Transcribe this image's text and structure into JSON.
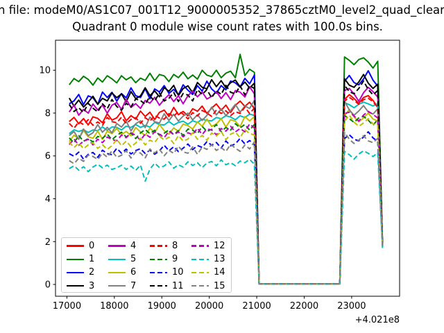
{
  "figure": {
    "title_line1": "n file: modeM0/AS1C07_001T12_9000005352_37865cztM0_level2_quad_clean",
    "title_line2": "Quadrant 0 module wise count rates with 100.0s bins."
  },
  "chart_data": {
    "type": "line",
    "title": "Quadrant 0 module wise count rates with 100.0s bins.",
    "file_label_visible": "n file: modeM0/AS1C07_001T12_9000005352_37865cztM0_level2_quad_clean",
    "xlabel": "",
    "ylabel": "",
    "x_axis_offset_text": "+4.021e8",
    "xticks": [
      17000,
      18000,
      19000,
      20000,
      21000,
      22000,
      23000
    ],
    "yticks": [
      0,
      2,
      4,
      6,
      8,
      10
    ],
    "xlim": [
      16760,
      24010
    ],
    "ylim": [
      -0.55,
      11.4
    ],
    "grid": false,
    "legend_position": "lower left",
    "legend_columns": 4,
    "bin_seconds": 100.0,
    "x_start": 17050,
    "x_step": 100,
    "zero_from": 21050,
    "zero_to": 22750,
    "zero_value": 0.02,
    "bump_from": 22850,
    "final_x": 23650,
    "noise_templates": {
      "A": [
        0.0,
        0.4,
        -0.3,
        0.2,
        -0.5,
        0.3,
        0.1,
        -0.4,
        0.5,
        -0.2,
        0.0,
        0.6,
        -0.4,
        0.1,
        -0.3,
        0.5,
        -0.1,
        0.3,
        -0.5,
        0.2,
        0.4,
        -0.3,
        0.6,
        -0.2,
        0.1,
        -0.4,
        0.3,
        0.0,
        0.5,
        -0.3,
        0.2,
        0.6,
        -0.1,
        0.4,
        -0.4,
        0.3,
        0.7,
        0.1,
        0.5,
        -0.2
      ],
      "B": [
        -0.2,
        0.5,
        0.1,
        0.7,
        0.3,
        -0.4,
        0.4,
        -0.1,
        0.6,
        0.2,
        -0.3,
        0.5,
        0.0,
        0.3,
        -0.4,
        0.1,
        -0.2,
        0.6,
        -0.3,
        0.4,
        0.2,
        -0.5,
        0.3,
        -0.1,
        0.5,
        -0.3,
        0.1,
        -0.4,
        0.6,
        0.0,
        -0.2,
        0.5,
        -0.4,
        0.1,
        0.3,
        -0.5,
        0.2,
        -0.3,
        0.4,
        0.0
      ]
    },
    "bump_template": [
      0.3,
      0.8,
      0.4,
      -0.1,
      0.5,
      0.7,
      0.2,
      -0.5
    ],
    "series": [
      {
        "label": "0",
        "color": "#ff0000",
        "dashed": false,
        "start": 7.6,
        "end": 8.3,
        "amp": 0.45,
        "tpl": "A",
        "sign": 1,
        "shift": 0,
        "bump": 8.5,
        "final": 1.8
      },
      {
        "label": "1",
        "color": "#008000",
        "dashed": false,
        "start": 9.4,
        "end": 9.9,
        "amp": 0.4,
        "tpl": "B",
        "sign": 1,
        "shift": 0,
        "bump": 10.3,
        "final": 1.9,
        "spikes": [
          [
            36,
            0.8
          ]
        ]
      },
      {
        "label": "2",
        "color": "#0000ff",
        "dashed": false,
        "start": 8.6,
        "end": 9.5,
        "amp": 0.55,
        "tpl": "A",
        "sign": -1,
        "shift": 5,
        "bump": 9.7,
        "final": 1.85
      },
      {
        "label": "3",
        "color": "#000000",
        "dashed": false,
        "start": 8.5,
        "end": 9.55,
        "amp": 0.5,
        "tpl": "B",
        "sign": -1,
        "shift": 5,
        "bump": 9.55,
        "final": 1.9
      },
      {
        "label": "4",
        "color": "#bf00bf",
        "dashed": false,
        "start": 8.05,
        "end": 9.0,
        "amp": 0.5,
        "tpl": "A",
        "sign": 1,
        "shift": 10,
        "bump": 8.8,
        "final": 1.8
      },
      {
        "label": "5",
        "color": "#00bfbf",
        "dashed": false,
        "start": 7.1,
        "end": 7.85,
        "amp": 0.2,
        "tpl": "B",
        "sign": 1,
        "shift": 10,
        "bump": 8.35,
        "final": 1.8
      },
      {
        "label": "6",
        "color": "#bfbf00",
        "dashed": false,
        "start": 6.9,
        "end": 7.7,
        "amp": 0.45,
        "tpl": "A",
        "sign": -1,
        "shift": 15,
        "bump": 7.95,
        "final": 1.75
      },
      {
        "label": "7",
        "color": "#808080",
        "dashed": false,
        "start": 7.0,
        "end": 8.4,
        "amp": 0.5,
        "tpl": "B",
        "sign": -1,
        "shift": 15,
        "bump": 8.3,
        "final": 1.8
      },
      {
        "label": "8",
        "color": "#ff0000",
        "dashed": true,
        "start": 7.45,
        "end": 8.1,
        "amp": 0.35,
        "tpl": "B",
        "sign": 1,
        "shift": 20,
        "bump": 8.45,
        "final": 1.85
      },
      {
        "label": "9",
        "color": "#008000",
        "dashed": true,
        "start": 6.7,
        "end": 7.4,
        "amp": 0.35,
        "tpl": "A",
        "sign": 1,
        "shift": 20,
        "bump": 7.6,
        "final": 1.8
      },
      {
        "label": "10",
        "color": "#0000ff",
        "dashed": true,
        "start": 6.0,
        "end": 6.7,
        "amp": 0.35,
        "tpl": "B",
        "sign": -1,
        "shift": 25,
        "bump": 6.95,
        "final": 1.75
      },
      {
        "label": "11",
        "color": "#000000",
        "dashed": true,
        "start": 8.2,
        "end": 9.2,
        "amp": 0.5,
        "tpl": "A",
        "sign": -1,
        "shift": 25,
        "bump": 9.25,
        "final": 1.9
      },
      {
        "label": "12",
        "color": "#bf00bf",
        "dashed": true,
        "start": 6.6,
        "end": 7.3,
        "amp": 0.35,
        "tpl": "B",
        "sign": 1,
        "shift": 30,
        "bump": 7.8,
        "final": 1.8
      },
      {
        "label": "13",
        "color": "#00bfbf",
        "dashed": true,
        "start": 5.35,
        "end": 5.7,
        "amp": 0.3,
        "tpl": "A",
        "sign": 1,
        "shift": 30,
        "bump": 6.0,
        "final": 1.7,
        "spikes": [
          [
            16,
            -0.7
          ]
        ]
      },
      {
        "label": "14",
        "color": "#bfbf00",
        "dashed": true,
        "start": 6.45,
        "end": 7.1,
        "amp": 0.4,
        "tpl": "B",
        "sign": -1,
        "shift": 35,
        "bump": 7.7,
        "final": 1.75
      },
      {
        "label": "15",
        "color": "#808080",
        "dashed": true,
        "start": 5.9,
        "end": 6.5,
        "amp": 0.4,
        "tpl": "A",
        "sign": -1,
        "shift": 35,
        "bump": 6.9,
        "final": 1.7
      }
    ]
  }
}
